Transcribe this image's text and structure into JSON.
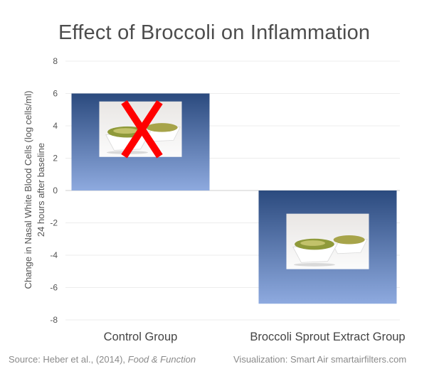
{
  "chart_data": {
    "type": "bar",
    "title": "Effect of Broccoli on Inflammation",
    "ylabel_line1": "Change in Nasal White Blood Cells (log cells/ml)",
    "ylabel_line2": "24 hours after baseline",
    "xlabel": "",
    "categories": [
      "Control Group",
      "Broccoli Sprout Extract Group"
    ],
    "values": [
      6,
      -7
    ],
    "ylim": [
      -8,
      8
    ],
    "yticks": [
      8,
      6,
      4,
      2,
      0,
      -2,
      -4,
      -6,
      -8
    ],
    "grid": true,
    "bar_gradient": [
      "#2b4a7e",
      "#8eaadf"
    ],
    "accent_cross_color": "#ff0000"
  },
  "footer": {
    "source_prefix": "Source: Heber et al., (2014), ",
    "source_journal": "Food & Function",
    "visualization": "Visualization: Smart Air smartairfilters.com"
  }
}
